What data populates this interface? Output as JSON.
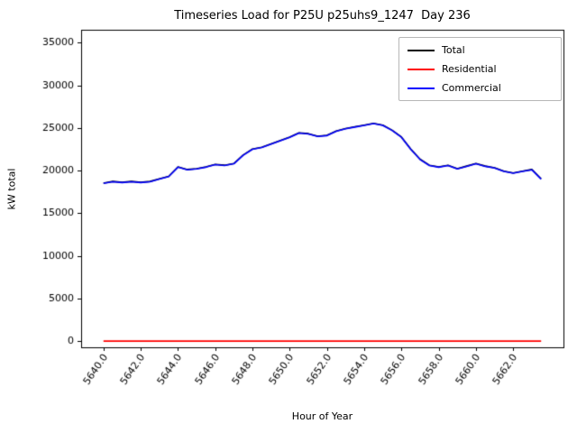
{
  "chart_data": {
    "type": "line",
    "title": "Timeseries Load for P25U p25uhs9_1247  Day 236",
    "xlabel": "Hour of Year",
    "ylabel": "kW total",
    "xlim": [
      5638.8,
      5664.7
    ],
    "ylim": [
      -700,
      36500
    ],
    "xticks": [
      5640,
      5642,
      5644,
      5646,
      5648,
      5650,
      5652,
      5654,
      5656,
      5658,
      5660,
      5662
    ],
    "xtick_labels": [
      "5640.0",
      "5642.0",
      "5644.0",
      "5646.0",
      "5648.0",
      "5650.0",
      "5652.0",
      "5654.0",
      "5656.0",
      "5658.0",
      "5660.0",
      "5662.0"
    ],
    "yticks": [
      0,
      5000,
      10000,
      15000,
      20000,
      25000,
      30000,
      35000
    ],
    "ytick_labels": [
      "0",
      "5000",
      "10000",
      "15000",
      "20000",
      "25000",
      "30000",
      "35000"
    ],
    "grid": false,
    "legend_position": "upper right",
    "x": [
      5640.0,
      5640.5,
      5641.0,
      5641.5,
      5642.0,
      5642.5,
      5643.0,
      5643.5,
      5644.0,
      5644.5,
      5645.0,
      5645.5,
      5646.0,
      5646.5,
      5647.0,
      5647.5,
      5648.0,
      5648.5,
      5649.0,
      5649.5,
      5650.0,
      5650.5,
      5651.0,
      5651.5,
      5652.0,
      5652.5,
      5653.0,
      5653.5,
      5654.0,
      5654.5,
      5655.0,
      5655.5,
      5656.0,
      5656.5,
      5657.0,
      5657.5,
      5658.0,
      5658.5,
      5659.0,
      5659.5,
      5660.0,
      5660.5,
      5661.0,
      5661.5,
      5662.0,
      5662.5,
      5663.0,
      5663.5
    ],
    "series": [
      {
        "name": "Total",
        "color": "#000000",
        "values": [
          18530,
          18730,
          18630,
          18730,
          18630,
          18730,
          19030,
          19330,
          20430,
          20130,
          20230,
          20430,
          20730,
          20630,
          20830,
          21830,
          22530,
          22730,
          23130,
          23530,
          23930,
          24430,
          24330,
          24030,
          24130,
          24630,
          24930,
          25130,
          25330,
          25530,
          25330,
          24730,
          23930,
          22530,
          21330,
          20630,
          20430,
          20630,
          20230,
          20530,
          20830,
          20530,
          20330,
          19930,
          19730,
          19930,
          20130,
          19030
        ]
      },
      {
        "name": "Residential",
        "color": "#ff0000",
        "values": [
          30,
          30,
          30,
          30,
          30,
          30,
          30,
          30,
          30,
          30,
          30,
          30,
          30,
          30,
          30,
          30,
          30,
          30,
          30,
          30,
          30,
          30,
          30,
          30,
          30,
          30,
          30,
          30,
          30,
          30,
          30,
          30,
          30,
          30,
          30,
          30,
          30,
          30,
          30,
          30,
          30,
          30,
          30,
          30,
          30,
          30,
          30,
          30
        ]
      },
      {
        "name": "Commercial",
        "color": "#0000ff",
        "values": [
          18500,
          18700,
          18600,
          18700,
          18600,
          18700,
          19000,
          19300,
          20400,
          20100,
          20200,
          20400,
          20700,
          20600,
          20800,
          21800,
          22500,
          22700,
          23100,
          23500,
          23900,
          24400,
          24300,
          24000,
          24100,
          24600,
          24900,
          25100,
          25300,
          25500,
          25300,
          24700,
          23900,
          22500,
          21300,
          20600,
          20400,
          20600,
          20200,
          20500,
          20800,
          20500,
          20300,
          19900,
          19700,
          19900,
          20100,
          19000
        ]
      }
    ],
    "legend": [
      {
        "label": "Total",
        "color": "#000000"
      },
      {
        "label": "Residential",
        "color": "#ff0000"
      },
      {
        "label": "Commercial",
        "color": "#0000ff"
      }
    ]
  }
}
